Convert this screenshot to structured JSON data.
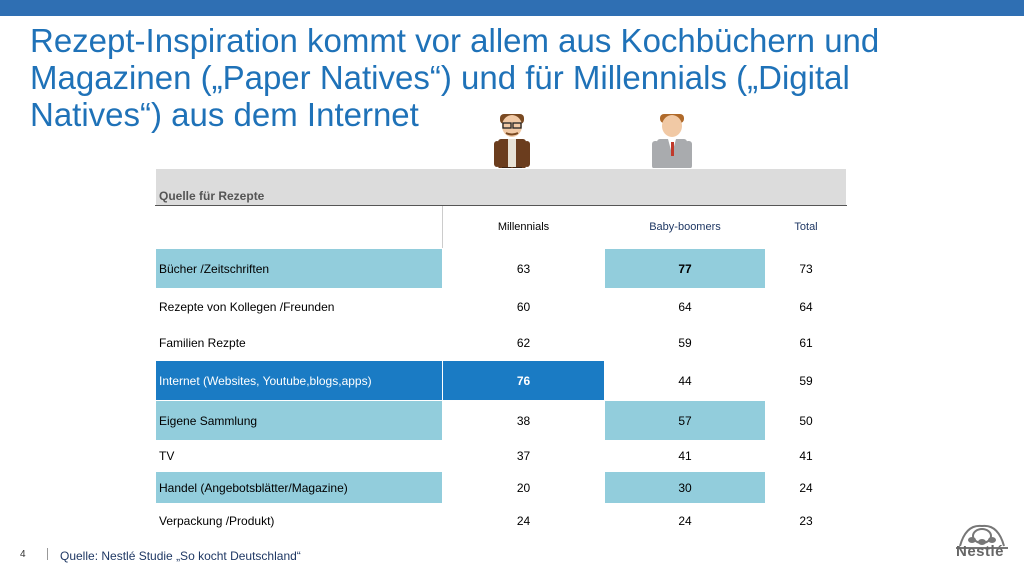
{
  "slide": {
    "title": "Rezept-Inspiration kommt vor allem aus Kochbüchern und Magazinen („Paper Natives“) und für Millennials  („Digital Natives“) aus dem Internet",
    "page_number": "4",
    "source": "Quelle: Nestlé Studie „So kocht Deutschland“",
    "logo_text": "Nestlé"
  },
  "table": {
    "header": "Quelle für Rezepte",
    "columns": [
      "Millennials",
      "Baby-boomers",
      "Total"
    ],
    "rows": [
      {
        "label": "Bücher /Zeitschriften",
        "values": [
          "63",
          "77",
          "73"
        ]
      },
      {
        "label": "Rezepte von Kollegen /Freunden",
        "values": [
          "60",
          "64",
          "64"
        ]
      },
      {
        "label": "Familien Rezpte",
        "values": [
          "62",
          "59",
          "61"
        ]
      },
      {
        "label": "Internet (Websites, Youtube,blogs,apps)",
        "values": [
          "76",
          "44",
          "59"
        ]
      },
      {
        "label": "Eigene Sammlung",
        "values": [
          "38",
          "57",
          "50"
        ]
      },
      {
        "label": "TV",
        "values": [
          "37",
          "41",
          "41"
        ]
      },
      {
        "label": "Handel (Angebotsblätter/Magazine)",
        "values": [
          "20",
          "30",
          "24"
        ]
      },
      {
        "label": "Verpackung /Produkt)",
        "values": [
          "24",
          "24",
          "23"
        ]
      }
    ]
  },
  "colors": {
    "title": "#1f72b8",
    "highlight_light": "#92cddc",
    "highlight_strong": "#1a7bc4"
  }
}
